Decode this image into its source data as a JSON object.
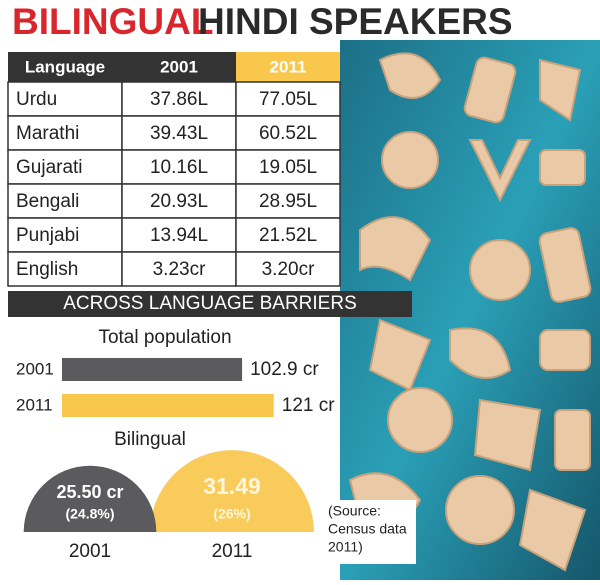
{
  "title_part1": "BILINGUAL",
  "title_part2": "HINDI SPEAKERS",
  "table": {
    "header": [
      "Language",
      "2001",
      "2011"
    ],
    "rows": [
      [
        "Urdu",
        "37.86L",
        "77.05L"
      ],
      [
        "Marathi",
        "39.43L",
        "60.52L"
      ],
      [
        "Gujarati",
        "10.16L",
        "19.05L"
      ],
      [
        "Bengali",
        "20.93L",
        "28.95L"
      ],
      [
        "Punjabi",
        "13.94L",
        "21.52L"
      ],
      [
        "English",
        "3.23cr",
        "3.20cr"
      ]
    ]
  },
  "section_title": "ACROSS LANGUAGE BARRIERS",
  "chart_data": [
    {
      "type": "bar",
      "title": "Total population",
      "categories": [
        "2001",
        "2011"
      ],
      "values": [
        102.9,
        121
      ],
      "value_labels": [
        "102.9 cr",
        "121 cr"
      ],
      "colors": [
        "#5b5b5d",
        "#f9c74c"
      ]
    },
    {
      "type": "semicircle",
      "title": "Bilingual",
      "categories": [
        "2001",
        "2011"
      ],
      "values": [
        25.5,
        31.49
      ],
      "value_labels": [
        "25.50 cr",
        "31.49"
      ],
      "percents": [
        24.8,
        26
      ],
      "percent_labels": [
        "(24.8%)",
        "(26%)"
      ],
      "colors": [
        "#5b5b5d",
        "#f9c74c"
      ]
    }
  ],
  "source": [
    "(Source:",
    "Census data",
    "2011)"
  ]
}
